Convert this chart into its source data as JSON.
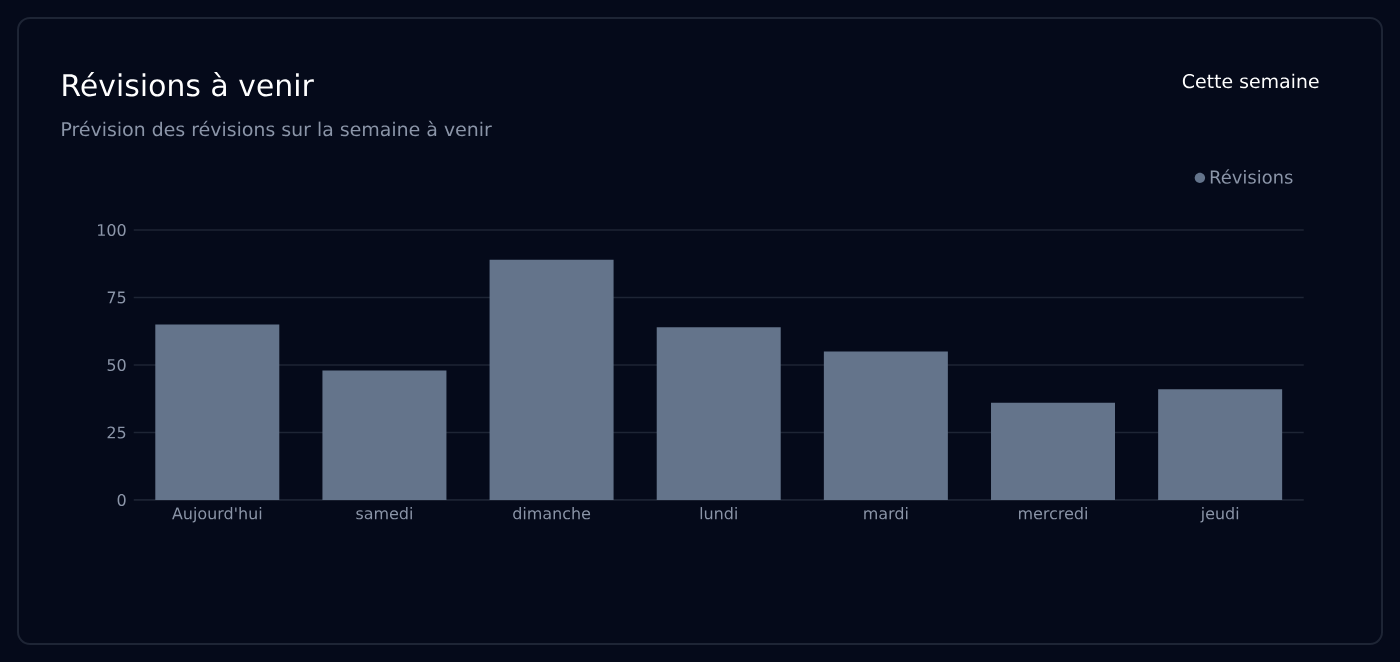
{
  "chart_data": {
    "type": "bar",
    "title": "Révisions à venir",
    "subtitle": "Prévision des révisions sur la semaine à venir",
    "annotations": [
      "Cette semaine"
    ],
    "categories": [
      "Aujourd'hui",
      "samedi",
      "dimanche",
      "lundi",
      "mardi",
      "mercredi",
      "jeudi"
    ],
    "series": [
      {
        "name": "Révisions",
        "color": "#64748b",
        "values": [
          65,
          48,
          89,
          64,
          55,
          36,
          41
        ]
      }
    ],
    "ylim": [
      0,
      100
    ],
    "yticks": [
      0,
      25,
      50,
      75,
      100
    ],
    "grid": "y",
    "legend": "top right"
  }
}
